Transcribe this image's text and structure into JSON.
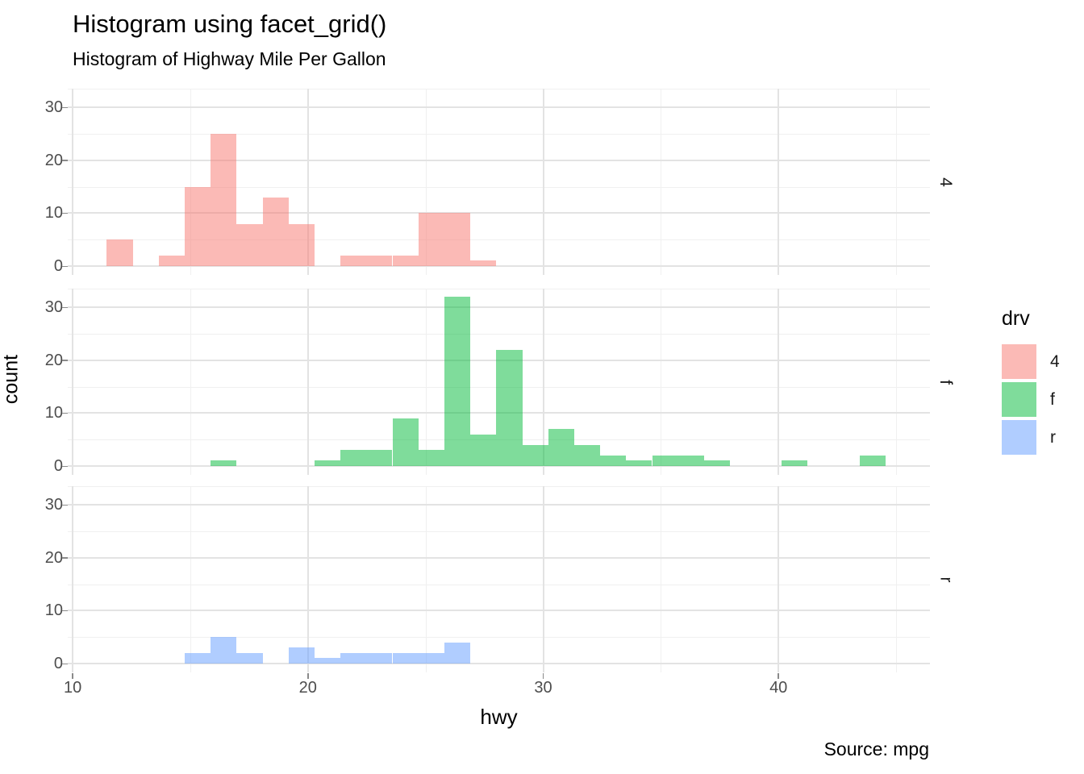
{
  "title": "Histogram using facet_grid()",
  "subtitle": "Histogram of Highway Mile Per Gallon",
  "caption": "Source: mpg",
  "axes": {
    "x_label": "hwy",
    "y_label": "count",
    "x_tick_labels": [
      "10",
      "20",
      "30",
      "40"
    ],
    "y_tick_labels": [
      "0",
      "10",
      "20",
      "30"
    ]
  },
  "legend": {
    "title": "drv",
    "entries": [
      {
        "label": "4",
        "color": "rgba(248,118,109,0.5)"
      },
      {
        "label": "f",
        "color": "rgba(0,186,56,0.5)"
      },
      {
        "label": "r",
        "color": "rgba(97,156,255,0.5)"
      }
    ]
  },
  "chart_data": {
    "type": "bar",
    "subtype": "histogram",
    "title": "Histogram using facet_grid()",
    "subtitle": "Histogram of Highway Mile Per Gallon",
    "caption": "Source: mpg",
    "xlabel": "hwy",
    "ylabel": "count",
    "binwidth": 1.1034,
    "x_major_ticks": [
      10,
      20,
      30,
      40
    ],
    "x_minor_gridlines": [
      15,
      25,
      35,
      45
    ],
    "y_major_ticks": [
      0,
      10,
      20,
      30
    ],
    "y_minor_gridlines": [
      5,
      15,
      25
    ],
    "xlim": [
      9.8,
      46.4
    ],
    "ylim": [
      -1.6,
      33.6
    ],
    "legend_title": "drv",
    "legend_position": "right",
    "grid": true,
    "facets": [
      {
        "label": "4",
        "fill": "rgba(248,118,109,0.5)",
        "bins": [
          {
            "x0": 11.45,
            "count": 5
          },
          {
            "x0": 13.66,
            "count": 2
          },
          {
            "x0": 14.76,
            "count": 15
          },
          {
            "x0": 15.86,
            "count": 25
          },
          {
            "x0": 16.97,
            "count": 8
          },
          {
            "x0": 18.07,
            "count": 13
          },
          {
            "x0": 19.17,
            "count": 8
          },
          {
            "x0": 21.38,
            "count": 2
          },
          {
            "x0": 22.48,
            "count": 2
          },
          {
            "x0": 23.59,
            "count": 2
          },
          {
            "x0": 24.69,
            "count": 10
          },
          {
            "x0": 25.79,
            "count": 10
          },
          {
            "x0": 26.9,
            "count": 1
          }
        ]
      },
      {
        "label": "f",
        "fill": "rgba(0,186,56,0.5)",
        "bins": [
          {
            "x0": 15.86,
            "count": 1
          },
          {
            "x0": 20.28,
            "count": 1
          },
          {
            "x0": 21.38,
            "count": 3
          },
          {
            "x0": 22.48,
            "count": 3
          },
          {
            "x0": 23.59,
            "count": 9
          },
          {
            "x0": 24.69,
            "count": 3
          },
          {
            "x0": 25.79,
            "count": 32
          },
          {
            "x0": 26.9,
            "count": 6
          },
          {
            "x0": 28.01,
            "count": 22
          },
          {
            "x0": 29.11,
            "count": 4
          },
          {
            "x0": 30.21,
            "count": 7
          },
          {
            "x0": 31.32,
            "count": 4
          },
          {
            "x0": 32.42,
            "count": 2
          },
          {
            "x0": 33.52,
            "count": 1
          },
          {
            "x0": 34.63,
            "count": 2
          },
          {
            "x0": 35.73,
            "count": 2
          },
          {
            "x0": 36.83,
            "count": 1
          },
          {
            "x0": 40.14,
            "count": 1
          },
          {
            "x0": 43.45,
            "count": 2
          }
        ]
      },
      {
        "label": "r",
        "fill": "rgba(97,156,255,0.5)",
        "bins": [
          {
            "x0": 14.76,
            "count": 2
          },
          {
            "x0": 15.86,
            "count": 5
          },
          {
            "x0": 16.97,
            "count": 2
          },
          {
            "x0": 19.17,
            "count": 3
          },
          {
            "x0": 20.28,
            "count": 1
          },
          {
            "x0": 21.38,
            "count": 2
          },
          {
            "x0": 22.48,
            "count": 2
          },
          {
            "x0": 23.59,
            "count": 2
          },
          {
            "x0": 24.69,
            "count": 2
          },
          {
            "x0": 25.79,
            "count": 4
          }
        ]
      }
    ]
  }
}
